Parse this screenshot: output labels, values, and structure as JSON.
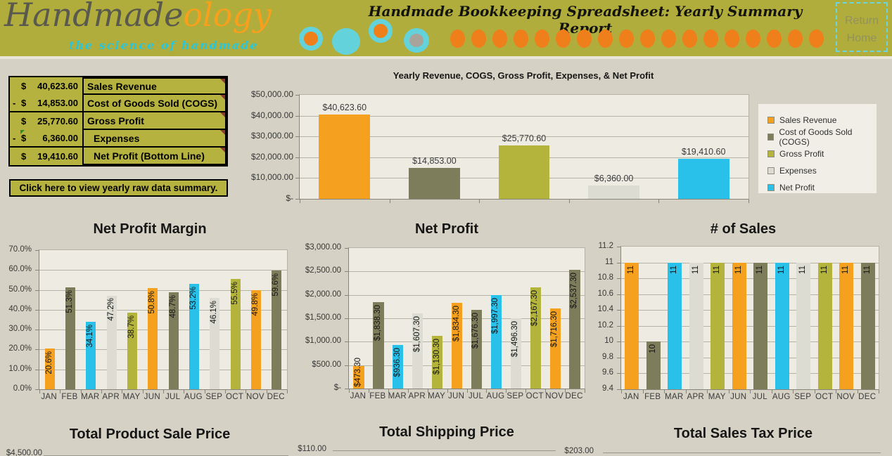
{
  "header": {
    "logo_main": "Handmade",
    "logo_accent": "ology",
    "tagline": "the science of handmade",
    "title": "Handmade Bookkeeping Spreadsheet:  Yearly Summary Report",
    "return_lines": [
      "Return",
      "Home"
    ],
    "decor": {
      "small_dot_count": 18
    }
  },
  "palette": {
    "header_bg": "#b1ad3c",
    "page_bg": "#d5d1c4",
    "table_bg": "#b6b240",
    "plot_bg": "#edebe2",
    "orange": "#f5a01e",
    "olive": "#7d7d5c",
    "green": "#b4b43d",
    "gray": "#dcdcd2",
    "cyan": "#29c0ea",
    "teal_accent": "#63d2da",
    "dot_orange": "#ee7f1a"
  },
  "summary_table": {
    "rows": [
      {
        "sign": "",
        "currency": "$",
        "amount": "40,623.60",
        "label": "Sales Revenue"
      },
      {
        "sign": "-",
        "currency": "$",
        "amount": "14,853.00",
        "label": "Cost of Goods Sold (COGS)"
      },
      {
        "sign": "",
        "currency": "$",
        "amount": "25,770.60",
        "label": "Gross Profit"
      },
      {
        "sign": "-",
        "currency": "$",
        "amount": "6,360.00",
        "label": "Expenses"
      },
      {
        "sign": "",
        "currency": "$",
        "amount": "19,410.60",
        "label": "Net Profit (Bottom Line)"
      }
    ],
    "button_label": "Click here to view yearly raw data summary."
  },
  "chart_data": [
    {
      "id": "yearly_summary",
      "type": "bar",
      "title": "Yearly Revenue, COGS, Gross Profit, Expenses, & Net Profit",
      "categories": [
        "Sales Revenue",
        "Cost of Goods Sold (COGS)",
        "Gross Profit",
        "Expenses",
        "Net Profit"
      ],
      "values": [
        40623.6,
        14853.0,
        25770.6,
        6360.0,
        19410.6
      ],
      "labels": [
        "$40,623.60",
        "$14,853.00",
        "$25,770.60",
        "$6,360.00",
        "$19,410.60"
      ],
      "colors": [
        "#f5a01e",
        "#7d7d5c",
        "#b4b43d",
        "#dcdcd2",
        "#29c0ea"
      ],
      "ylim": [
        0,
        50000
      ],
      "yticks": [
        "$50,000.00",
        "$40,000.00",
        "$30,000.00",
        "$20,000.00",
        "$10,000.00",
        "$-"
      ],
      "legend": [
        "Sales Revenue",
        "Cost of Goods Sold (COGS)",
        "Gross Profit",
        "Expenses",
        "Net Profit"
      ],
      "legend_position": "right",
      "grid": true
    },
    {
      "id": "net_profit_margin",
      "type": "bar",
      "title": "Net Profit Margin",
      "categories": [
        "JAN",
        "FEB",
        "MAR",
        "APR",
        "MAY",
        "JUN",
        "JUL",
        "AUG",
        "SEP",
        "OCT",
        "NOV",
        "DEC"
      ],
      "values": [
        20.6,
        51.3,
        34.1,
        47.2,
        38.7,
        50.8,
        48.7,
        53.2,
        46.1,
        55.5,
        49.8,
        59.6
      ],
      "labels": [
        "20.6%",
        "51.3%",
        "34.1%",
        "47.2%",
        "38.7%",
        "50.8%",
        "48.7%",
        "53.2%",
        "46.1%",
        "55.5%",
        "49.8%",
        "59.6%"
      ],
      "colors": [
        "#f5a01e",
        "#7d7d5c",
        "#29c0ea",
        "#dcdcd2",
        "#b4b43d"
      ],
      "ylim": [
        0,
        70
      ],
      "yticks": [
        "70.0%",
        "60.0%",
        "50.0%",
        "40.0%",
        "30.0%",
        "20.0%",
        "10.0%",
        "0.0%"
      ],
      "grid": true
    },
    {
      "id": "net_profit_monthly",
      "type": "bar",
      "title": "Net Profit",
      "categories": [
        "JAN",
        "FEB",
        "MAR",
        "APR",
        "MAY",
        "JUN",
        "JUL",
        "AUG",
        "SEP",
        "OCT",
        "NOV",
        "DEC"
      ],
      "values": [
        473.3,
        1838.3,
        936.3,
        1607.3,
        1130.3,
        1834.3,
        1676.3,
        1997.3,
        1496.3,
        2167.3,
        1716.3,
        2537.3
      ],
      "labels": [
        "$473.30",
        "$1,838.30",
        "$936.30",
        "$1,607.30",
        "$1,130.30",
        "$1,834.30",
        "$1,676.30",
        "$1,997.30",
        "$1,496.30",
        "$2,167.30",
        "$1,716.30",
        "$2,537.30"
      ],
      "colors": [
        "#f5a01e",
        "#7d7d5c",
        "#29c0ea",
        "#dcdcd2",
        "#b4b43d"
      ],
      "ylim": [
        0,
        3000
      ],
      "yticks": [
        "$3,000.00",
        "$2,500.00",
        "$2,000.00",
        "$1,500.00",
        "$1,000.00",
        "$500.00",
        "$-"
      ],
      "grid": true
    },
    {
      "id": "num_of_sales",
      "type": "bar",
      "title": "# of Sales",
      "categories": [
        "JAN",
        "FEB",
        "MAR",
        "APR",
        "MAY",
        "JUN",
        "JUL",
        "AUG",
        "SEP",
        "OCT",
        "NOV",
        "DEC"
      ],
      "values": [
        11,
        10,
        11,
        11,
        11,
        11,
        11,
        11,
        11,
        11,
        11,
        11
      ],
      "labels": [
        "11",
        "10",
        "11",
        "11",
        "11",
        "11",
        "11",
        "11",
        "11",
        "11",
        "11",
        "11"
      ],
      "colors": [
        "#f5a01e",
        "#7d7d5c",
        "#29c0ea",
        "#dcdcd2",
        "#b4b43d"
      ],
      "ylim": [
        9.4,
        11.2
      ],
      "yticks": [
        "11.2",
        "11",
        "10.8",
        "10.6",
        "10.4",
        "10.2",
        "10",
        "9.8",
        "9.6",
        "9.4"
      ],
      "grid": true
    },
    {
      "id": "total_product_sale_price",
      "type": "bar",
      "title": "Total Product Sale Price",
      "first_ytick": "$4,500.00"
    },
    {
      "id": "total_shipping_price",
      "type": "bar",
      "title": "Total Shipping Price",
      "first_ytick": "$110.00"
    },
    {
      "id": "total_sales_tax_price",
      "type": "bar",
      "title": "Total Sales Tax Price",
      "first_ytick": "$203.00"
    }
  ]
}
